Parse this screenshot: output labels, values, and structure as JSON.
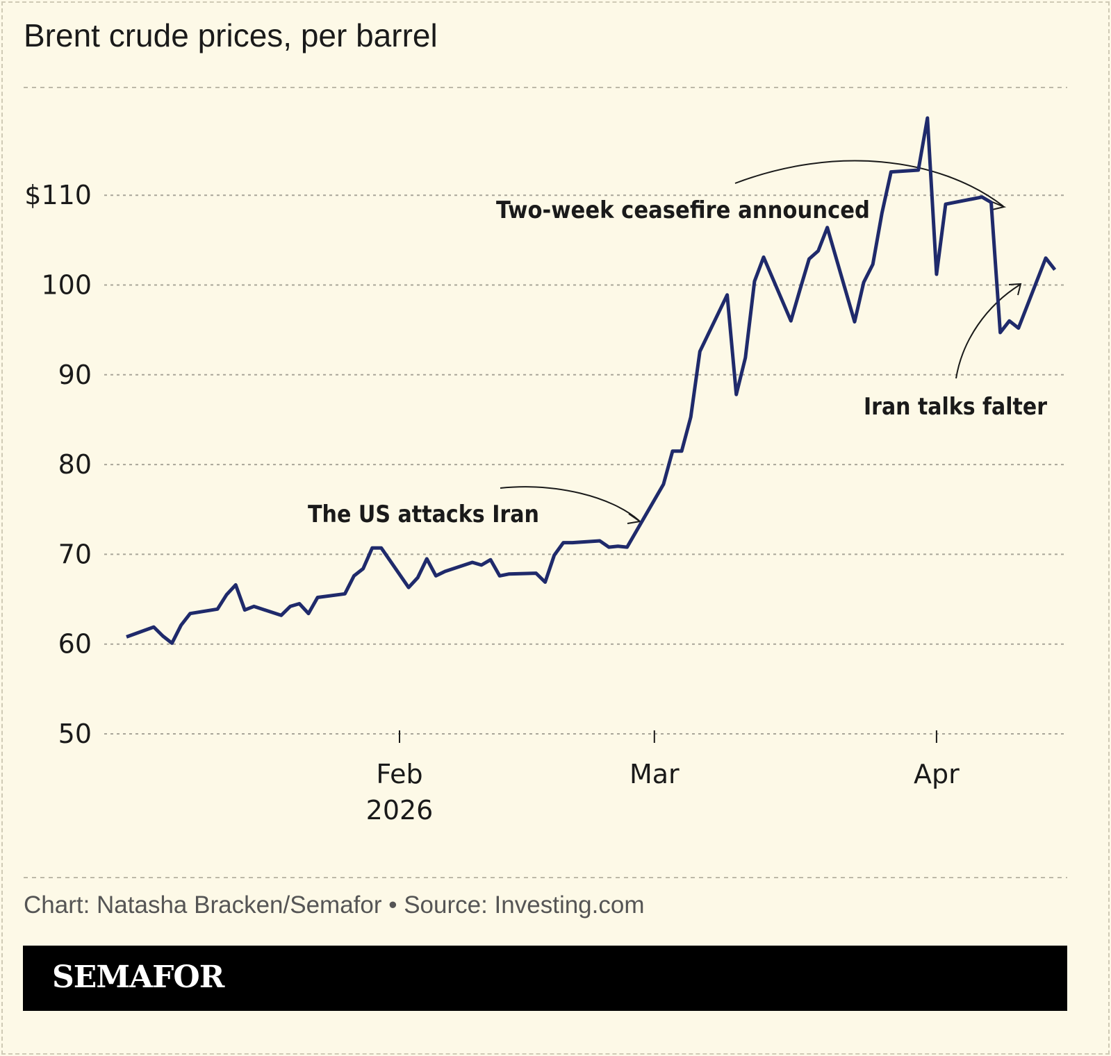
{
  "chart_data": {
    "type": "line",
    "title": "Brent crude prices, per barrel",
    "ylim": [
      50,
      120
    ],
    "yticks": [
      50,
      60,
      70,
      80,
      90,
      100,
      110
    ],
    "ytick_labels": [
      "50",
      "60",
      "70",
      "80",
      "90",
      "100",
      "$110"
    ],
    "xticks": [
      {
        "date": "2026-02-01",
        "label": "Feb",
        "sublabel": "2026"
      },
      {
        "date": "2026-03-01",
        "label": "Mar",
        "sublabel": ""
      },
      {
        "date": "2026-04-01",
        "label": "Apr",
        "sublabel": ""
      }
    ],
    "grid": true,
    "line_color": "#1f2a6b",
    "series": [
      {
        "points": [
          [
            "2026-01-02",
            60.8
          ],
          [
            "2026-01-05",
            61.9
          ],
          [
            "2026-01-06",
            60.9
          ],
          [
            "2026-01-07",
            60.1
          ],
          [
            "2026-01-08",
            62.1
          ],
          [
            "2026-01-09",
            63.4
          ],
          [
            "2026-01-12",
            63.9
          ],
          [
            "2026-01-13",
            65.5
          ],
          [
            "2026-01-14",
            66.6
          ],
          [
            "2026-01-15",
            63.8
          ],
          [
            "2026-01-16",
            64.2
          ],
          [
            "2026-01-19",
            63.2
          ],
          [
            "2026-01-20",
            64.2
          ],
          [
            "2026-01-21",
            64.5
          ],
          [
            "2026-01-22",
            63.4
          ],
          [
            "2026-01-23",
            65.2
          ],
          [
            "2026-01-26",
            65.6
          ],
          [
            "2026-01-27",
            67.6
          ],
          [
            "2026-01-28",
            68.4
          ],
          [
            "2026-01-29",
            70.7
          ],
          [
            "2026-01-30",
            70.7
          ],
          [
            "2026-02-02",
            66.3
          ],
          [
            "2026-02-03",
            67.4
          ],
          [
            "2026-02-04",
            69.5
          ],
          [
            "2026-02-05",
            67.6
          ],
          [
            "2026-02-06",
            68.1
          ],
          [
            "2026-02-09",
            69.1
          ],
          [
            "2026-02-10",
            68.8
          ],
          [
            "2026-02-11",
            69.4
          ],
          [
            "2026-02-12",
            67.6
          ],
          [
            "2026-02-13",
            67.8
          ],
          [
            "2026-02-16",
            67.9
          ],
          [
            "2026-02-17",
            66.9
          ],
          [
            "2026-02-18",
            69.9
          ],
          [
            "2026-02-19",
            71.3
          ],
          [
            "2026-02-20",
            71.3
          ],
          [
            "2026-02-23",
            71.5
          ],
          [
            "2026-02-24",
            70.8
          ],
          [
            "2026-02-25",
            70.9
          ],
          [
            "2026-02-26",
            70.8
          ],
          [
            "2026-03-02",
            77.8
          ],
          [
            "2026-03-03",
            81.5
          ],
          [
            "2026-03-04",
            81.5
          ],
          [
            "2026-03-05",
            85.3
          ],
          [
            "2026-03-06",
            92.6
          ],
          [
            "2026-03-09",
            98.9
          ],
          [
            "2026-03-10",
            87.8
          ],
          [
            "2026-03-11",
            91.9
          ],
          [
            "2026-03-12",
            100.4
          ],
          [
            "2026-03-13",
            103.1
          ],
          [
            "2026-03-16",
            96.0
          ],
          [
            "2026-03-17",
            99.5
          ],
          [
            "2026-03-18",
            102.9
          ],
          [
            "2026-03-19",
            103.8
          ],
          [
            "2026-03-20",
            106.4
          ],
          [
            "2026-03-23",
            95.9
          ],
          [
            "2026-03-24",
            100.3
          ],
          [
            "2026-03-25",
            102.3
          ],
          [
            "2026-03-26",
            108.0
          ],
          [
            "2026-03-27",
            112.6
          ],
          [
            "2026-03-30",
            112.8
          ],
          [
            "2026-03-31",
            118.6
          ],
          [
            "2026-04-01",
            101.2
          ],
          [
            "2026-04-02",
            109.0
          ],
          [
            "2026-04-06",
            109.8
          ],
          [
            "2026-04-07",
            109.2
          ],
          [
            "2026-04-08",
            94.7
          ],
          [
            "2026-04-09",
            96.0
          ],
          [
            "2026-04-10",
            95.2
          ],
          [
            "2026-04-13",
            103.0
          ],
          [
            "2026-04-14",
            101.7
          ]
        ]
      }
    ],
    "annotations": [
      {
        "text": "The US attacks Iran",
        "date": "2026-02-28"
      },
      {
        "text": "Two-week ceasefire announced",
        "date": "2026-04-07"
      },
      {
        "text": "Iran talks falter",
        "date": "2026-04-10"
      }
    ]
  },
  "footer": {
    "credit": "Chart: Natasha Bracken/Semafor • Source: Investing.com",
    "brand": "SEMAFOR"
  }
}
